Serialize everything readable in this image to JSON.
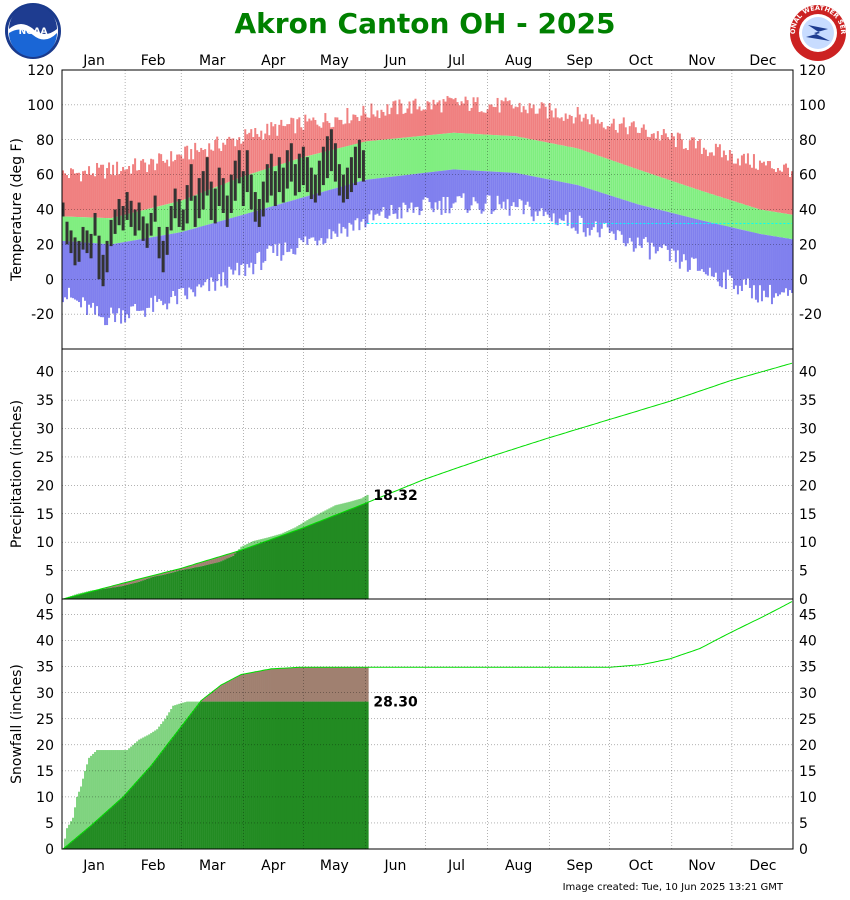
{
  "title": "Akron Canton OH - 2025",
  "credit": "Image created: Tue, 10 Jun 2025 13:21 GMT",
  "logos": {
    "left": "NOAA",
    "right": "NATIONAL WEATHER SERVICE"
  },
  "colors": {
    "record_high_band": "#f08080",
    "normal_band": "#80ee80",
    "record_low_band": "#8080ee",
    "observed": "#333333",
    "observed_precip": "#228b22",
    "normal_line": "#00dd00",
    "deficit": "#a08070",
    "surplus": "#7fd37f",
    "title": "#008000",
    "mean_marker": "#00ffff"
  },
  "chart_data": [
    {
      "type": "bar",
      "panel": "temperature",
      "ylabel": "Temperature (deg F)",
      "ylim": [
        -40,
        120
      ],
      "yticks": [
        120,
        100,
        80,
        60,
        40,
        20,
        0,
        -20
      ],
      "months": [
        "Jan",
        "Feb",
        "Mar",
        "Apr",
        "May",
        "Jun",
        "Jul",
        "Aug",
        "Sep",
        "Oct",
        "Nov",
        "Dec"
      ],
      "month_start_day": [
        1,
        32,
        60,
        91,
        121,
        152,
        182,
        213,
        244,
        274,
        305,
        335
      ],
      "grid": true,
      "record_high": [
        {
          "day": 1,
          "value": 60
        },
        {
          "day": 20,
          "value": 62
        },
        {
          "day": 45,
          "value": 66
        },
        {
          "day": 75,
          "value": 76
        },
        {
          "day": 105,
          "value": 86
        },
        {
          "day": 135,
          "value": 92
        },
        {
          "day": 165,
          "value": 98
        },
        {
          "day": 196,
          "value": 101
        },
        {
          "day": 227,
          "value": 99
        },
        {
          "day": 258,
          "value": 94
        },
        {
          "day": 288,
          "value": 86
        },
        {
          "day": 319,
          "value": 76
        },
        {
          "day": 349,
          "value": 66
        },
        {
          "day": 365,
          "value": 63
        }
      ],
      "normal_high": [
        {
          "day": 1,
          "value": 36
        },
        {
          "day": 25,
          "value": 35
        },
        {
          "day": 60,
          "value": 45
        },
        {
          "day": 91,
          "value": 59
        },
        {
          "day": 121,
          "value": 70
        },
        {
          "day": 152,
          "value": 79
        },
        {
          "day": 196,
          "value": 84
        },
        {
          "day": 227,
          "value": 82
        },
        {
          "day": 258,
          "value": 75
        },
        {
          "day": 288,
          "value": 63
        },
        {
          "day": 319,
          "value": 51
        },
        {
          "day": 349,
          "value": 40
        },
        {
          "day": 365,
          "value": 37
        }
      ],
      "normal_low": [
        {
          "day": 1,
          "value": 22
        },
        {
          "day": 25,
          "value": 20
        },
        {
          "day": 60,
          "value": 27
        },
        {
          "day": 91,
          "value": 37
        },
        {
          "day": 121,
          "value": 47
        },
        {
          "day": 152,
          "value": 57
        },
        {
          "day": 196,
          "value": 63
        },
        {
          "day": 227,
          "value": 61
        },
        {
          "day": 258,
          "value": 54
        },
        {
          "day": 288,
          "value": 43
        },
        {
          "day": 319,
          "value": 34
        },
        {
          "day": 349,
          "value": 26
        },
        {
          "day": 365,
          "value": 23
        }
      ],
      "record_low": [
        {
          "day": 1,
          "value": -8
        },
        {
          "day": 20,
          "value": -22
        },
        {
          "day": 45,
          "value": -16
        },
        {
          "day": 75,
          "value": -4
        },
        {
          "day": 105,
          "value": 14
        },
        {
          "day": 135,
          "value": 27
        },
        {
          "day": 165,
          "value": 38
        },
        {
          "day": 196,
          "value": 44
        },
        {
          "day": 227,
          "value": 41
        },
        {
          "day": 258,
          "value": 32
        },
        {
          "day": 288,
          "value": 20
        },
        {
          "day": 319,
          "value": 6
        },
        {
          "day": 349,
          "value": -8
        },
        {
          "day": 365,
          "value": -10
        }
      ],
      "observed": [
        {
          "day": 1,
          "high": 44,
          "low": 36
        },
        {
          "day": 3,
          "high": 33,
          "low": 20
        },
        {
          "day": 5,
          "high": 28,
          "low": 15
        },
        {
          "day": 7,
          "high": 24,
          "low": 8
        },
        {
          "day": 9,
          "high": 22,
          "low": 10
        },
        {
          "day": 11,
          "high": 30,
          "low": 17
        },
        {
          "day": 13,
          "high": 28,
          "low": 15
        },
        {
          "day": 15,
          "high": 26,
          "low": 12
        },
        {
          "day": 17,
          "high": 38,
          "low": 25
        },
        {
          "day": 19,
          "high": 25,
          "low": 0
        },
        {
          "day": 21,
          "high": 14,
          "low": -4
        },
        {
          "day": 23,
          "high": 22,
          "low": 4
        },
        {
          "day": 25,
          "high": 34,
          "low": 19
        },
        {
          "day": 27,
          "high": 40,
          "low": 26
        },
        {
          "day": 29,
          "high": 46,
          "low": 31
        },
        {
          "day": 31,
          "high": 42,
          "low": 28
        },
        {
          "day": 33,
          "high": 50,
          "low": 34
        },
        {
          "day": 35,
          "high": 45,
          "low": 30
        },
        {
          "day": 37,
          "high": 40,
          "low": 25
        },
        {
          "day": 39,
          "high": 44,
          "low": 28
        },
        {
          "day": 41,
          "high": 36,
          "low": 22
        },
        {
          "day": 43,
          "high": 32,
          "low": 18
        },
        {
          "day": 45,
          "high": 38,
          "low": 25
        },
        {
          "day": 47,
          "high": 48,
          "low": 33
        },
        {
          "day": 49,
          "high": 30,
          "low": 12
        },
        {
          "day": 51,
          "high": 22,
          "low": 4
        },
        {
          "day": 53,
          "high": 30,
          "low": 14
        },
        {
          "day": 55,
          "high": 42,
          "low": 28
        },
        {
          "day": 57,
          "high": 52,
          "low": 35
        },
        {
          "day": 59,
          "high": 46,
          "low": 30
        },
        {
          "day": 61,
          "high": 40,
          "low": 28
        },
        {
          "day": 63,
          "high": 54,
          "low": 32
        },
        {
          "day": 65,
          "high": 66,
          "low": 45
        },
        {
          "day": 67,
          "high": 48,
          "low": 30
        },
        {
          "day": 69,
          "high": 58,
          "low": 35
        },
        {
          "day": 71,
          "high": 62,
          "low": 40
        },
        {
          "day": 73,
          "high": 70,
          "low": 48
        },
        {
          "day": 75,
          "high": 56,
          "low": 34
        },
        {
          "day": 77,
          "high": 52,
          "low": 32
        },
        {
          "day": 79,
          "high": 64,
          "low": 42
        },
        {
          "day": 81,
          "high": 58,
          "low": 38
        },
        {
          "day": 83,
          "high": 48,
          "low": 30
        },
        {
          "day": 85,
          "high": 60,
          "low": 38
        },
        {
          "day": 87,
          "high": 68,
          "low": 45
        },
        {
          "day": 89,
          "high": 74,
          "low": 55
        },
        {
          "day": 91,
          "high": 62,
          "low": 42
        },
        {
          "day": 93,
          "high": 74,
          "low": 50
        },
        {
          "day": 95,
          "high": 60,
          "low": 40
        },
        {
          "day": 97,
          "high": 50,
          "low": 33
        },
        {
          "day": 99,
          "high": 46,
          "low": 30
        },
        {
          "day": 101,
          "high": 56,
          "low": 36
        },
        {
          "day": 103,
          "high": 66,
          "low": 44
        },
        {
          "day": 105,
          "high": 72,
          "low": 48
        },
        {
          "day": 107,
          "high": 62,
          "low": 42
        },
        {
          "day": 109,
          "high": 70,
          "low": 50
        },
        {
          "day": 111,
          "high": 64,
          "low": 44
        },
        {
          "day": 113,
          "high": 74,
          "low": 52
        },
        {
          "day": 115,
          "high": 78,
          "low": 56
        },
        {
          "day": 117,
          "high": 66,
          "low": 48
        },
        {
          "day": 119,
          "high": 72,
          "low": 50
        },
        {
          "day": 121,
          "high": 76,
          "low": 54
        },
        {
          "day": 123,
          "high": 70,
          "low": 50
        },
        {
          "day": 125,
          "high": 64,
          "low": 46
        },
        {
          "day": 127,
          "high": 60,
          "low": 44
        },
        {
          "day": 129,
          "high": 68,
          "low": 48
        },
        {
          "day": 131,
          "high": 76,
          "low": 54
        },
        {
          "day": 133,
          "high": 82,
          "low": 58
        },
        {
          "day": 135,
          "high": 86,
          "low": 62
        },
        {
          "day": 137,
          "high": 78,
          "low": 56
        },
        {
          "day": 139,
          "high": 66,
          "low": 48
        },
        {
          "day": 141,
          "high": 60,
          "low": 44
        },
        {
          "day": 143,
          "high": 64,
          "low": 46
        },
        {
          "day": 145,
          "high": 70,
          "low": 50
        },
        {
          "day": 147,
          "high": 76,
          "low": 54
        },
        {
          "day": 149,
          "high": 80,
          "low": 58
        },
        {
          "day": 151,
          "high": 74,
          "low": 56
        }
      ]
    },
    {
      "type": "area",
      "panel": "precipitation",
      "ylabel": "Precipitation (inches)",
      "ylim": [
        0,
        44
      ],
      "yticks": [
        40,
        35,
        30,
        25,
        20,
        15,
        10,
        5,
        0
      ],
      "grid": true,
      "label": "18.32",
      "normal_cumulative": [
        {
          "day": 1,
          "value": 0
        },
        {
          "day": 31,
          "value": 2.8
        },
        {
          "day": 59,
          "value": 5.3
        },
        {
          "day": 90,
          "value": 8.6
        },
        {
          "day": 120,
          "value": 12.4
        },
        {
          "day": 151,
          "value": 16.7
        },
        {
          "day": 181,
          "value": 21.0
        },
        {
          "day": 212,
          "value": 24.8
        },
        {
          "day": 243,
          "value": 28.3
        },
        {
          "day": 273,
          "value": 31.5
        },
        {
          "day": 304,
          "value": 34.8
        },
        {
          "day": 334,
          "value": 38.4
        },
        {
          "day": 365,
          "value": 41.5
        }
      ],
      "observed_cumulative": [
        {
          "day": 1,
          "value": 0
        },
        {
          "day": 8,
          "value": 0.9
        },
        {
          "day": 15,
          "value": 1.5
        },
        {
          "day": 22,
          "value": 1.8
        },
        {
          "day": 31,
          "value": 2.3
        },
        {
          "day": 38,
          "value": 2.9
        },
        {
          "day": 46,
          "value": 3.9
        },
        {
          "day": 53,
          "value": 4.4
        },
        {
          "day": 59,
          "value": 5.0
        },
        {
          "day": 65,
          "value": 5.4
        },
        {
          "day": 72,
          "value": 5.9
        },
        {
          "day": 79,
          "value": 6.5
        },
        {
          "day": 86,
          "value": 7.6
        },
        {
          "day": 90,
          "value": 9.2
        },
        {
          "day": 96,
          "value": 10.2
        },
        {
          "day": 103,
          "value": 10.8
        },
        {
          "day": 110,
          "value": 11.5
        },
        {
          "day": 117,
          "value": 12.6
        },
        {
          "day": 124,
          "value": 14.1
        },
        {
          "day": 131,
          "value": 15.4
        },
        {
          "day": 137,
          "value": 16.5
        },
        {
          "day": 144,
          "value": 17.1
        },
        {
          "day": 150,
          "value": 17.7
        },
        {
          "day": 153,
          "value": 18.32
        }
      ]
    },
    {
      "type": "area",
      "panel": "snowfall",
      "ylabel": "Snowfall (inches)",
      "ylim": [
        0,
        48
      ],
      "yticks": [
        45,
        40,
        35,
        30,
        25,
        20,
        15,
        10,
        5,
        0
      ],
      "grid": true,
      "label": "28.30",
      "normal_cumulative": [
        {
          "day": 1,
          "value": 0
        },
        {
          "day": 15,
          "value": 4.5
        },
        {
          "day": 31,
          "value": 10.0
        },
        {
          "day": 45,
          "value": 16.0
        },
        {
          "day": 59,
          "value": 23.0
        },
        {
          "day": 70,
          "value": 28.5
        },
        {
          "day": 80,
          "value": 31.5
        },
        {
          "day": 90,
          "value": 33.5
        },
        {
          "day": 105,
          "value": 34.6
        },
        {
          "day": 120,
          "value": 34.9
        },
        {
          "day": 153,
          "value": 34.9
        },
        {
          "day": 274,
          "value": 34.9
        },
        {
          "day": 290,
          "value": 35.4
        },
        {
          "day": 304,
          "value": 36.5
        },
        {
          "day": 319,
          "value": 38.5
        },
        {
          "day": 334,
          "value": 41.5
        },
        {
          "day": 350,
          "value": 44.5
        },
        {
          "day": 365,
          "value": 47.5
        }
      ],
      "observed_cumulative": [
        {
          "day": 1,
          "value": 0
        },
        {
          "day": 3,
          "value": 4.0
        },
        {
          "day": 6,
          "value": 6.0
        },
        {
          "day": 8,
          "value": 10.0
        },
        {
          "day": 10,
          "value": 12.0
        },
        {
          "day": 12,
          "value": 15.0
        },
        {
          "day": 14,
          "value": 17.5
        },
        {
          "day": 18,
          "value": 19.0
        },
        {
          "day": 33,
          "value": 19.0
        },
        {
          "day": 39,
          "value": 21.0
        },
        {
          "day": 44,
          "value": 22.0
        },
        {
          "day": 48,
          "value": 23.0
        },
        {
          "day": 52,
          "value": 25.0
        },
        {
          "day": 56,
          "value": 27.5
        },
        {
          "day": 60,
          "value": 28.0
        },
        {
          "day": 63,
          "value": 28.3
        },
        {
          "day": 153,
          "value": 28.3
        }
      ]
    }
  ]
}
